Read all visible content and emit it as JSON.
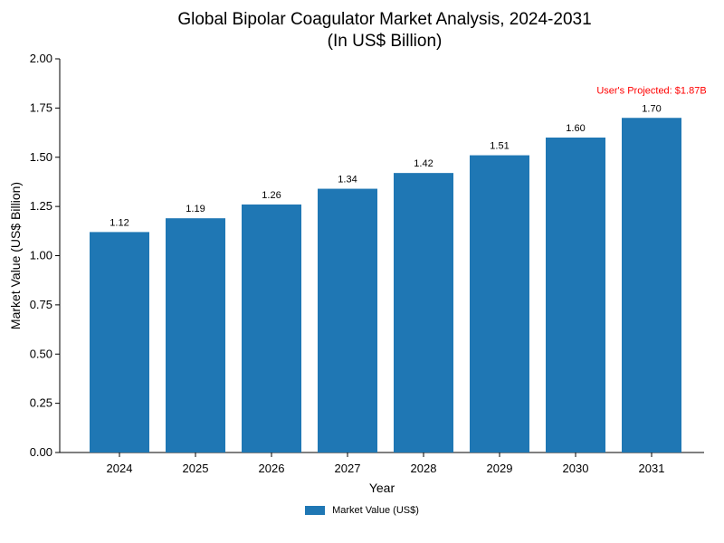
{
  "title_line1": "Global Bipolar Coagulator Market Analysis, 2024-2031",
  "title_line2": "(In US$ Billion)",
  "chart_data": {
    "type": "bar",
    "categories": [
      "2024",
      "2025",
      "2026",
      "2027",
      "2028",
      "2029",
      "2030",
      "2031"
    ],
    "series": [
      {
        "name": "Market Value (US$)",
        "values": [
          1.12,
          1.19,
          1.26,
          1.34,
          1.42,
          1.51,
          1.6,
          1.7
        ],
        "data_labels": [
          "1.12",
          "1.19",
          "1.26",
          "1.34",
          "1.42",
          "1.51",
          "1.60",
          "1.70"
        ],
        "color": "#1f77b4"
      }
    ],
    "xlabel": "Year",
    "ylabel": "Market Value (US$ Billion)",
    "ylim": [
      0,
      2.0
    ],
    "yticks": [
      "0.00",
      "0.25",
      "0.50",
      "0.75",
      "1.00",
      "1.25",
      "1.50",
      "1.75",
      "2.00"
    ],
    "grid": false,
    "legend_position": "bottom-center",
    "annotation": {
      "text": "User's Projected: $1.87B",
      "color": "#ff0000",
      "category": "2031"
    }
  }
}
